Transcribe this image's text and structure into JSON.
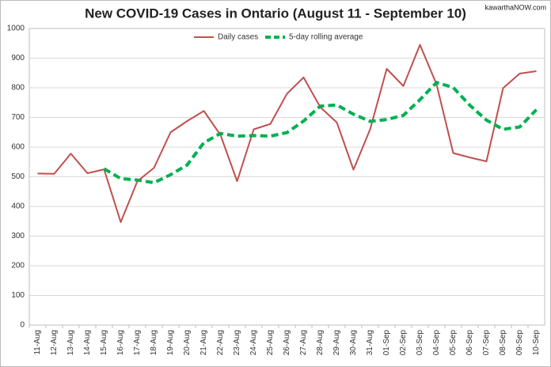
{
  "chart_data": {
    "type": "line",
    "title": "New COVID-19 Cases in Ontario (August 11 - September 10)",
    "watermark": "kawarthaNOW.com",
    "categories": [
      "11-Aug",
      "12-Aug",
      "13-Aug",
      "14-Aug",
      "15-Aug",
      "16-Aug",
      "17-Aug",
      "18-Aug",
      "19-Aug",
      "20-Aug",
      "21-Aug",
      "22-Aug",
      "23-Aug",
      "24-Aug",
      "25-Aug",
      "26-Aug",
      "27-Aug",
      "28-Aug",
      "29-Aug",
      "30-Aug",
      "31-Aug",
      "01-Sep",
      "02-Sep",
      "03-Sep",
      "04-Sep",
      "05-Sep",
      "06-Sep",
      "07-Sep",
      "08-Sep",
      "09-Sep",
      "10-Sep"
    ],
    "series": [
      {
        "name": "Daily cases",
        "color": "#c0504d",
        "dashed": false,
        "values": [
          511,
          510,
          578,
          512,
          525,
          347,
          485,
          530,
          650,
          688,
          722,
          641,
          485,
          660,
          678,
          780,
          835,
          735,
          683,
          524,
          660,
          864,
          806,
          945,
          811,
          580,
          565,
          552,
          799,
          848,
          856
        ]
      },
      {
        "name": "5-day rolling average",
        "color": "#00b050",
        "dashed": true,
        "values": [
          null,
          null,
          null,
          null,
          527,
          494,
          489,
          480,
          507,
          540,
          615,
          646,
          637,
          639,
          637,
          649,
          688,
          738,
          742,
          711,
          687,
          693,
          707,
          760,
          818,
          801,
          741,
          691,
          660,
          668,
          726
        ]
      }
    ],
    "ylim": [
      0,
      1000
    ],
    "yticks": [
      0,
      100,
      200,
      300,
      400,
      500,
      600,
      700,
      800,
      900,
      1000
    ],
    "grid": true,
    "legend": "top"
  }
}
